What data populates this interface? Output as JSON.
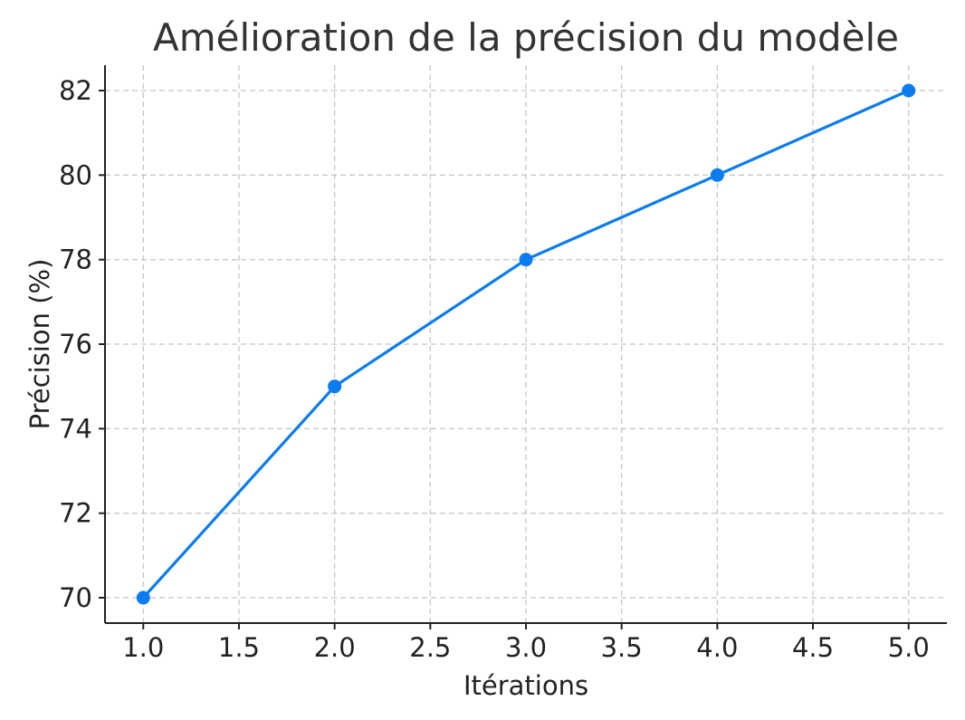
{
  "chart_data": {
    "type": "line",
    "title": "Amélioration de la précision du modèle",
    "xlabel": "Itérations",
    "ylabel": "Précision (%)",
    "x": [
      1.0,
      2.0,
      3.0,
      4.0,
      5.0
    ],
    "series": [
      {
        "values": [
          70,
          75,
          78,
          80,
          82
        ],
        "color": "#0a7cf0",
        "marker": "circle"
      }
    ],
    "xlim": [
      0.8,
      5.2
    ],
    "ylim": [
      69.4,
      82.6
    ],
    "x_ticks": [
      1.0,
      1.5,
      2.0,
      2.5,
      3.0,
      3.5,
      4.0,
      4.5,
      5.0
    ],
    "x_tick_labels": [
      "1.0",
      "1.5",
      "2.0",
      "2.5",
      "3.0",
      "3.5",
      "4.0",
      "4.5",
      "5.0"
    ],
    "y_ticks": [
      70,
      72,
      74,
      76,
      78,
      80,
      82
    ],
    "y_tick_labels": [
      "70",
      "72",
      "74",
      "76",
      "78",
      "80",
      "82"
    ],
    "grid": true,
    "grid_style": "dashed",
    "legend": "none"
  }
}
